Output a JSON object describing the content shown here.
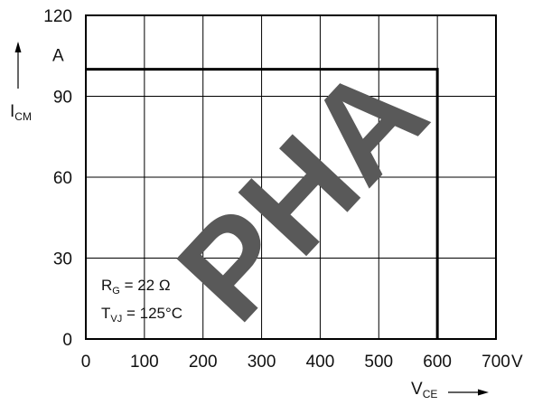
{
  "chart_data": {
    "type": "line",
    "title": "",
    "xlabel": {
      "main": "V",
      "sub": "CE"
    },
    "ylabel": {
      "main": "I",
      "sub": "CM"
    },
    "x_unit": "V",
    "y_unit": "A",
    "xlim": [
      0,
      700
    ],
    "ylim": [
      0,
      120
    ],
    "x_ticks": [
      0,
      100,
      200,
      300,
      400,
      500,
      600,
      700
    ],
    "y_ticks": [
      0,
      30,
      60,
      90,
      120
    ],
    "grid": true,
    "series": [
      {
        "x": [
          0,
          600,
          600
        ],
        "y": [
          100,
          100,
          0
        ]
      }
    ],
    "annotations": [
      {
        "main": "R",
        "sub": "G",
        "rest": " = 22 Ω"
      },
      {
        "main": "T",
        "sub": "VJ",
        "rest": " = 125°C"
      }
    ],
    "watermark": {
      "text": "PHA",
      "color": "#595959"
    }
  }
}
